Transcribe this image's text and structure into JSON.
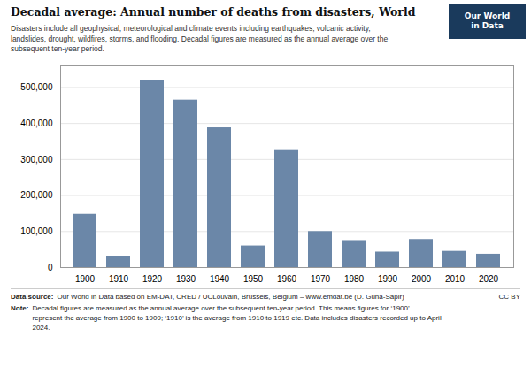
{
  "chart_data": {
    "type": "bar",
    "title": "Decadal average: Annual number of deaths from disasters, World",
    "subtitle": "Disasters include all geophysical, meteorological and climate events including earthquakes, volcanic activity,\nlandslides, drought, wildfires, storms, and flooding. Decadal figures are measured as the annual average over the\nsubsequent ten-year period.",
    "categories": [
      1900,
      1910,
      1920,
      1930,
      1940,
      1950,
      1960,
      1970,
      1980,
      1990,
      2000,
      2010,
      2020
    ],
    "values": [
      148000,
      30000,
      520000,
      465000,
      388000,
      60000,
      325000,
      100000,
      75000,
      43000,
      78000,
      45000,
      37000
    ],
    "color": "#6b87a8",
    "ylim": [
      0,
      560000
    ],
    "yticks": [
      0,
      {
        "value": 100000,
        "label": "100,000"
      },
      {
        "value": 200000,
        "label": "200,000"
      },
      {
        "value": 300000,
        "label": "300,000"
      },
      {
        "value": 400000,
        "label": "400,000"
      },
      {
        "value": 500000,
        "label": "500,000"
      }
    ],
    "grid": true,
    "source_label": "Data source:",
    "source": "Our World in Data based on EM-DAT, CRED / UCLouvain, Brussels, Belgium – www.emdat.be (D. Guha-Sapir)",
    "license": "CC BY",
    "note_label": "Note:",
    "note": "Decadal figures are measured as the annual average over the subsequent ten-year period. This means figures for ‘1900’\nrepresent the average from 1900 to 1909; ‘1910’ is the average from 1910 to 1919 etc. Data includes disasters recorded up to April\n2024.",
    "logo": "Our World\nin Data",
    "logo_color": "#1a3a5c"
  }
}
